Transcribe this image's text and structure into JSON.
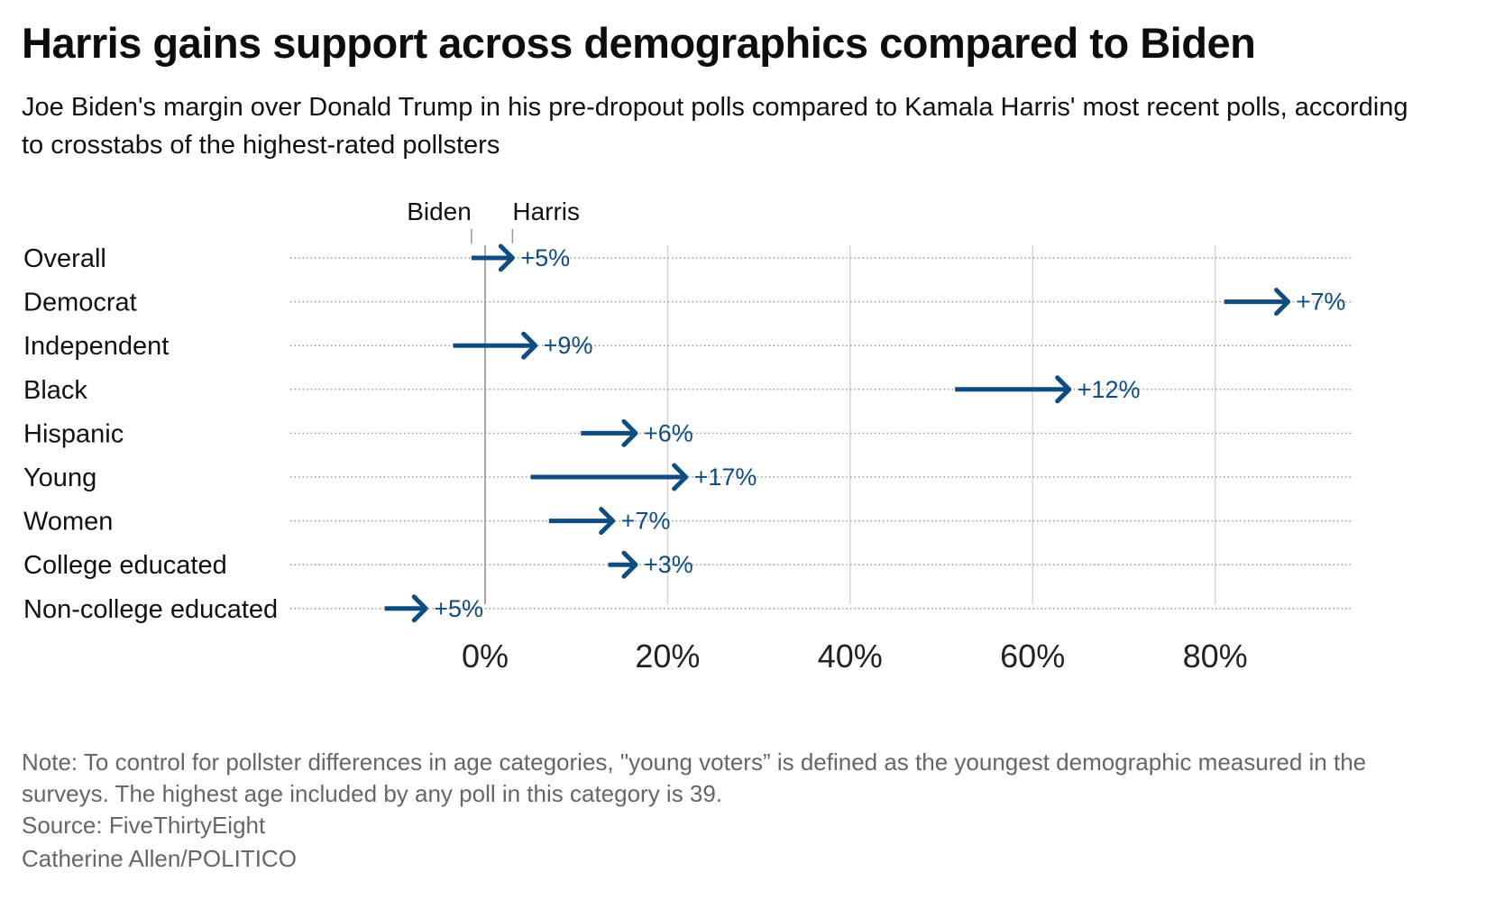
{
  "title": "Harris gains support across demographics compared to Biden",
  "subtitle": "Joe Biden's margin over Donald Trump in his pre-dropout polls compared to Kamala Harris' most recent polls, according to crosstabs of the highest-rated pollsters",
  "note": "Note: To control for pollster differences in age categories, \"young voters” is defined as the youngest demographic measured in the surveys. The highest age included by any poll in this category is 39.",
  "source": "Source: FiveThirtyEight",
  "credit": "Catherine Allen/POLITICO",
  "colors": {
    "arrow": "#0f4c81",
    "grid": "#d5d5d5",
    "zero": "#a8a8a8",
    "row_line": "#9a9a9a"
  },
  "chart_data": {
    "type": "arrow",
    "legend": {
      "start_label": "Biden",
      "end_label": "Harris",
      "reference_row": "Overall"
    },
    "xlim": [
      -21,
      95
    ],
    "ticks": [
      0,
      20,
      40,
      60,
      80
    ],
    "tick_labels": [
      "0%",
      "20%",
      "40%",
      "60%",
      "80%"
    ],
    "rows": [
      {
        "category": "Overall",
        "biden": -1.5,
        "harris": 3,
        "label": "+5%"
      },
      {
        "category": "Democrat",
        "biden": 81,
        "harris": 88,
        "label": "+7%"
      },
      {
        "category": "Independent",
        "biden": -3.5,
        "harris": 5.5,
        "label": "+9%"
      },
      {
        "category": "Black",
        "biden": 51.5,
        "harris": 64,
        "label": "+12%"
      },
      {
        "category": "Hispanic",
        "biden": 10.5,
        "harris": 16.5,
        "label": "+6%"
      },
      {
        "category": "Young",
        "biden": 5,
        "harris": 22,
        "label": "+17%"
      },
      {
        "category": "Women",
        "biden": 7,
        "harris": 14,
        "label": "+7%"
      },
      {
        "category": "College educated",
        "biden": 13.5,
        "harris": 16.5,
        "label": "+3%"
      },
      {
        "category": "Non-college educated",
        "biden": -11,
        "harris": -6.5,
        "label": "+5%"
      }
    ]
  }
}
